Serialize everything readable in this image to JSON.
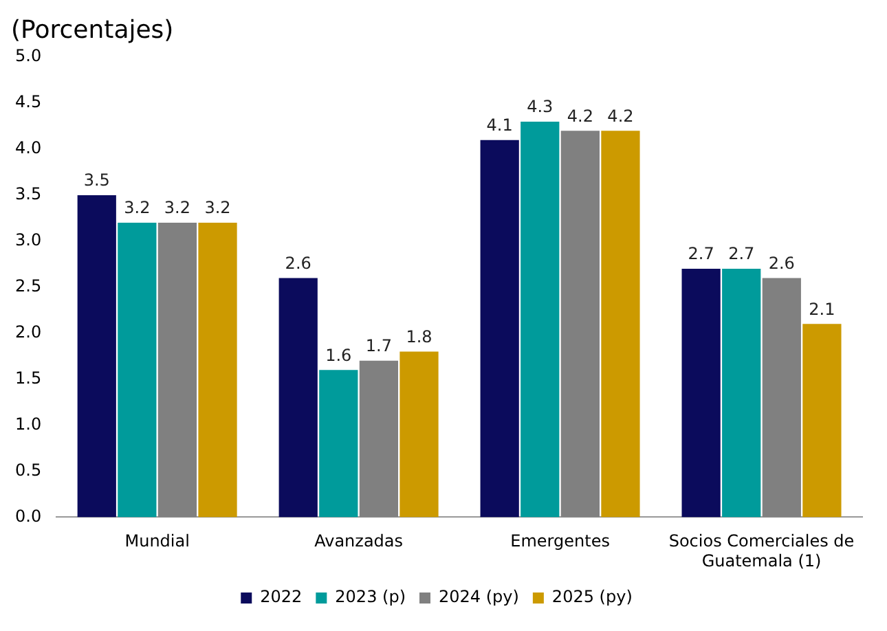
{
  "chart_data": {
    "type": "bar",
    "title": "(Porcentajes)",
    "categories": [
      "Mundial",
      "Avanzadas",
      "Emergentes",
      "Socios Comerciales de Guatemala (1)"
    ],
    "series": [
      {
        "name": "2022",
        "color": "#0b0b5c",
        "values": [
          3.5,
          2.6,
          4.1,
          2.7
        ]
      },
      {
        "name": "2023 (p)",
        "color": "#009b9b",
        "values": [
          3.2,
          1.6,
          4.3,
          2.7
        ]
      },
      {
        "name": "2024 (py)",
        "color": "#808080",
        "values": [
          3.2,
          1.7,
          4.2,
          2.6
        ]
      },
      {
        "name": "2025 (py)",
        "color": "#cc9a00",
        "values": [
          3.2,
          1.8,
          4.2,
          2.1
        ]
      }
    ],
    "ylim": [
      0,
      5
    ],
    "yticks": [
      {
        "value": 0,
        "label": "0.0"
      },
      {
        "value": 0.5,
        "label": "0.5"
      },
      {
        "value": 1,
        "label": "1.0"
      },
      {
        "value": 1.5,
        "label": "1.5"
      },
      {
        "value": 2,
        "label": "2.0"
      },
      {
        "value": 2.5,
        "label": "2.5"
      },
      {
        "value": 3,
        "label": "3.0"
      },
      {
        "value": 3.5,
        "label": "3.5"
      },
      {
        "value": 4,
        "label": "4.0"
      },
      {
        "value": 4.5,
        "label": "4.5"
      },
      {
        "value": 5,
        "label": "5.0"
      }
    ],
    "grid": false,
    "legend": "bottom",
    "data_labels": true
  }
}
